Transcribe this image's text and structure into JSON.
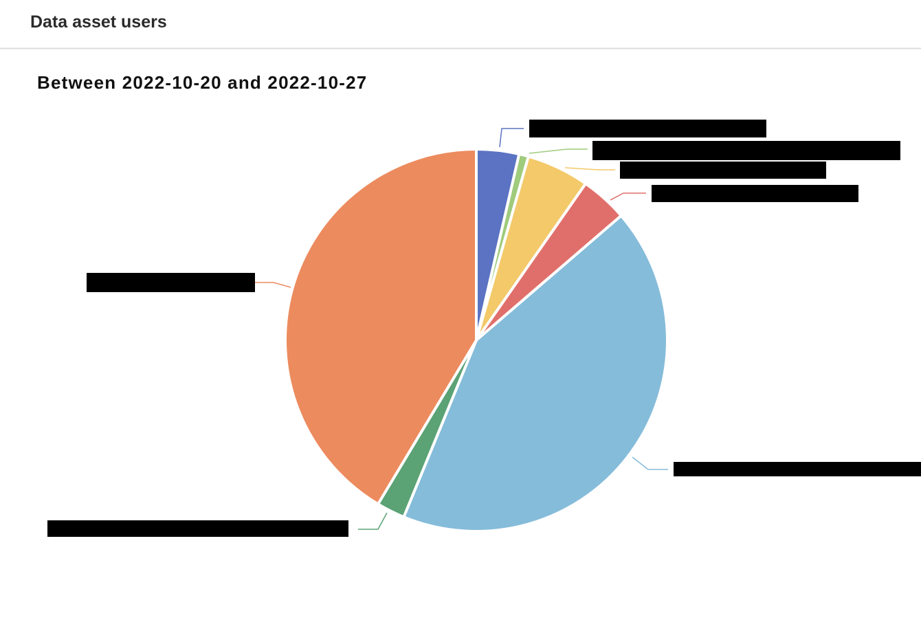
{
  "header": {
    "title": "Data asset users"
  },
  "chart_data": {
    "type": "pie",
    "title": "Between 2022-10-20 and 2022-10-27",
    "categories": [
      null,
      null,
      null,
      null,
      null,
      null,
      null
    ],
    "values": [
      3.6,
      0.8,
      5.3,
      4,
      42.5,
      2.4,
      41.4
    ],
    "colors": [
      "#5b73c2",
      "#9fcb7c",
      "#f3c96a",
      "#e06f6b",
      "#85bcda",
      "#5ba275",
      "#ec8b5e"
    ]
  }
}
